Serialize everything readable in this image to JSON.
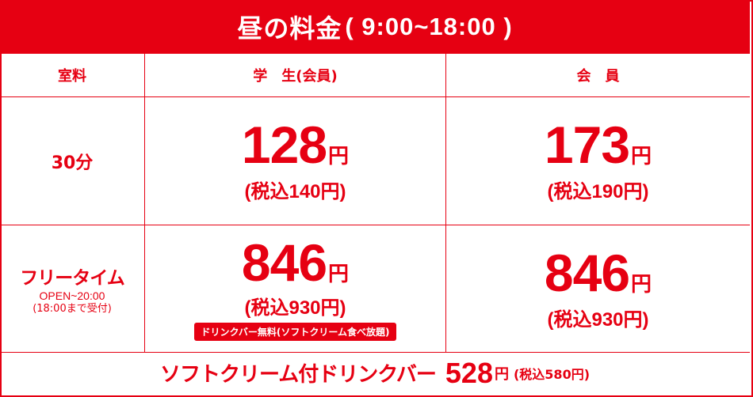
{
  "title": {
    "main": "昼の料金",
    "time": "( 9:00~18:00 )"
  },
  "header": {
    "room": "室料",
    "student": "学　生(会員)",
    "member": "会　員"
  },
  "rows": [
    {
      "label": "30分",
      "student": {
        "price": "128",
        "unit": "円",
        "tax": "(税込140円)"
      },
      "member": {
        "price": "173",
        "unit": "円",
        "tax": "(税込190円)"
      }
    },
    {
      "label": "フリータイム",
      "sub1": "OPEN~20:00",
      "sub2": "(18:00まで受付)",
      "student": {
        "price": "846",
        "unit": "円",
        "tax": "(税込930円)",
        "badge": "ドリンクバー無料(ソフトクリーム食べ放題)"
      },
      "member": {
        "price": "846",
        "unit": "円",
        "tax": "(税込930円)"
      }
    }
  ],
  "footer": {
    "label": "ソフトクリーム付ドリンクバー",
    "price": "528",
    "unit": "円",
    "tax": "(税込580円)"
  },
  "colors": {
    "accent": "#e60012",
    "background": "#ffffff"
  }
}
